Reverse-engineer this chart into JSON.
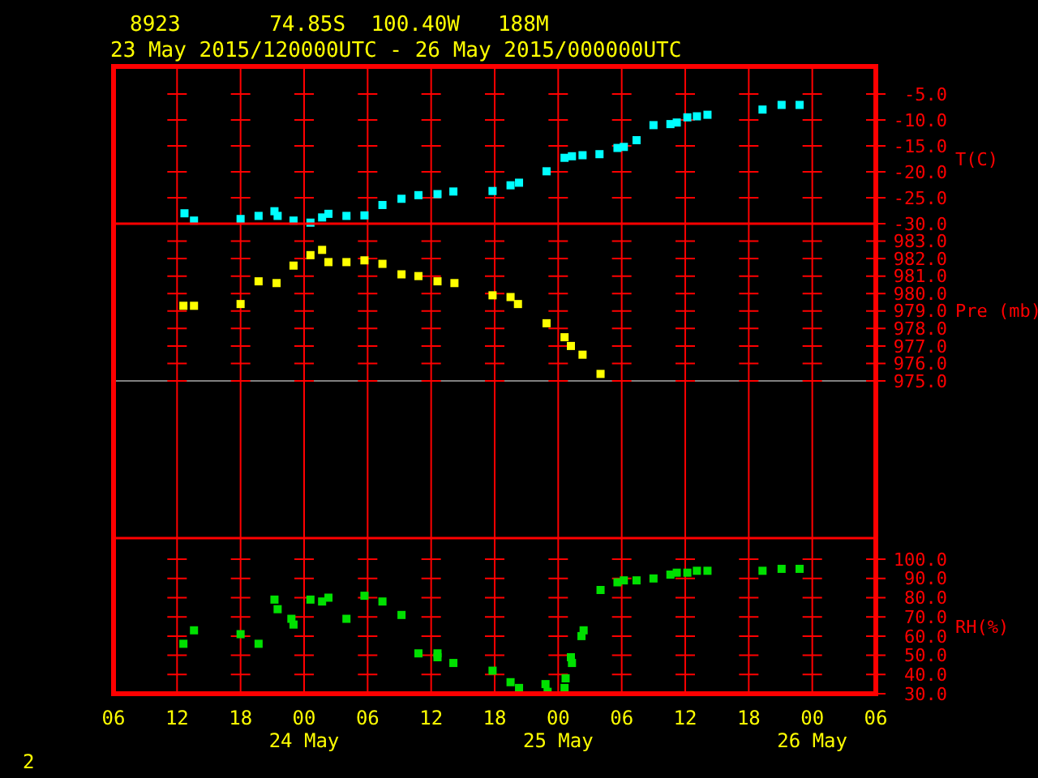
{
  "chart_data": [
    {
      "type": "scatter",
      "title": "8923       74.85S  100.40W   188M",
      "subtitle": "23 May 2015/120000UTC - 26 May 2015/000000UTC",
      "ylabel": "T(C)",
      "marker": "square",
      "grid": true,
      "tick_labels": "y",
      "xlim": [
        "2015-05-23T06:00",
        "2015-05-26T06:00"
      ],
      "xticks": [
        {
          "value": "2015-05-23T12:00",
          "label": null
        },
        {
          "value": "2015-05-23T18:00",
          "label": null
        },
        {
          "value": "2015-05-24T00:00",
          "label": null
        },
        {
          "value": "2015-05-24T06:00",
          "label": null
        },
        {
          "value": "2015-05-24T12:00",
          "label": null
        },
        {
          "value": "2015-05-24T18:00",
          "label": null
        },
        {
          "value": "2015-05-25T00:00",
          "label": null
        },
        {
          "value": "2015-05-25T06:00",
          "label": null
        },
        {
          "value": "2015-05-25T12:00",
          "label": null
        },
        {
          "value": "2015-05-25T18:00",
          "label": null
        },
        {
          "value": "2015-05-26T00:00",
          "label": null
        }
      ],
      "ylim": [
        -30,
        0
      ],
      "yticks": [
        {
          "value": -5,
          "label": "-5.0"
        },
        {
          "value": -10,
          "label": "-10.0"
        },
        {
          "value": -15,
          "label": "-15.0"
        },
        {
          "value": -20,
          "label": "-20.0"
        },
        {
          "value": -25,
          "label": "-25.0"
        },
        {
          "value": -30,
          "label": "-30.0"
        }
      ],
      "series": [
        {
          "color": "#00ffff",
          "x": [
            "2015-05-23T12:42",
            "2015-05-23T13:36",
            "2015-05-23T18:00",
            "2015-05-23T19:42",
            "2015-05-23T21:12",
            "2015-05-23T21:30",
            "2015-05-23T23:00",
            "2015-05-24T00:36",
            "2015-05-24T01:42",
            "2015-05-24T02:18",
            "2015-05-24T04:00",
            "2015-05-24T05:42",
            "2015-05-24T07:24",
            "2015-05-24T09:12",
            "2015-05-24T10:48",
            "2015-05-24T12:36",
            "2015-05-24T14:06",
            "2015-05-24T17:48",
            "2015-05-24T19:30",
            "2015-05-24T20:18",
            "2015-05-24T22:54",
            "2015-05-25T00:36",
            "2015-05-25T01:18",
            "2015-05-25T02:18",
            "2015-05-25T03:54",
            "2015-05-25T05:36",
            "2015-05-25T06:12",
            "2015-05-25T07:24",
            "2015-05-25T09:00",
            "2015-05-25T10:36",
            "2015-05-25T11:12",
            "2015-05-25T12:12",
            "2015-05-25T13:06",
            "2015-05-25T14:06",
            "2015-05-25T19:18",
            "2015-05-25T21:06",
            "2015-05-25T22:48"
          ],
          "values": [
            -28.0,
            -29.4,
            -29.1,
            -28.5,
            -27.6,
            -28.5,
            -29.4,
            -29.8,
            -28.8,
            -28.1,
            -28.5,
            -28.4,
            -26.4,
            -25.2,
            -24.5,
            -24.3,
            -23.8,
            -23.7,
            -22.6,
            -22.1,
            -19.9,
            -17.3,
            -17.0,
            -16.8,
            -16.6,
            -15.4,
            -15.2,
            -13.9,
            -11.0,
            -10.8,
            -10.5,
            -9.5,
            -9.3,
            -9.0,
            -8.0,
            -7.1,
            -7.1
          ]
        }
      ]
    },
    {
      "type": "scatter",
      "ylabel": "Pre (mb)",
      "marker": "square",
      "grid": true,
      "tick_labels": "y",
      "xlim": [
        "2015-05-23T06:00",
        "2015-05-26T06:00"
      ],
      "xticks": [
        {
          "value": "2015-05-23T12:00",
          "label": null
        },
        {
          "value": "2015-05-23T18:00",
          "label": null
        },
        {
          "value": "2015-05-24T00:00",
          "label": null
        },
        {
          "value": "2015-05-24T06:00",
          "label": null
        },
        {
          "value": "2015-05-24T12:00",
          "label": null
        },
        {
          "value": "2015-05-24T18:00",
          "label": null
        },
        {
          "value": "2015-05-25T00:00",
          "label": null
        },
        {
          "value": "2015-05-25T06:00",
          "label": null
        },
        {
          "value": "2015-05-25T12:00",
          "label": null
        },
        {
          "value": "2015-05-25T18:00",
          "label": null
        },
        {
          "value": "2015-05-26T00:00",
          "label": null
        }
      ],
      "ylim": [
        966,
        984
      ],
      "yticks": [
        {
          "value": 983,
          "label": "983.0"
        },
        {
          "value": 982,
          "label": "982.0"
        },
        {
          "value": 981,
          "label": "981.0"
        },
        {
          "value": 980,
          "label": "980.0"
        },
        {
          "value": 979,
          "label": "979.0"
        },
        {
          "value": 978,
          "label": "978.0"
        },
        {
          "value": 977,
          "label": "977.0"
        },
        {
          "value": 976,
          "label": "976.0"
        },
        {
          "value": 975,
          "label": "975.0"
        }
      ],
      "ref_lines": [
        {
          "axis": "y",
          "value": 975,
          "color": "#808080"
        }
      ],
      "series": [
        {
          "color": "#ffff00",
          "x": [
            "2015-05-23T12:36",
            "2015-05-23T13:36",
            "2015-05-23T18:00",
            "2015-05-23T19:42",
            "2015-05-23T21:24",
            "2015-05-23T23:00",
            "2015-05-24T00:36",
            "2015-05-24T01:42",
            "2015-05-24T02:18",
            "2015-05-24T04:00",
            "2015-05-24T05:42",
            "2015-05-24T07:24",
            "2015-05-24T09:12",
            "2015-05-24T10:48",
            "2015-05-24T12:36",
            "2015-05-24T14:12",
            "2015-05-24T17:48",
            "2015-05-24T19:30",
            "2015-05-24T20:12",
            "2015-05-24T22:54",
            "2015-05-25T00:36",
            "2015-05-25T01:12",
            "2015-05-25T02:18",
            "2015-05-25T04:00"
          ],
          "values": [
            979.3,
            979.3,
            979.4,
            980.7,
            980.6,
            981.6,
            982.2,
            982.5,
            981.8,
            981.8,
            981.9,
            981.7,
            981.1,
            981.0,
            980.7,
            980.6,
            979.9,
            979.8,
            979.4,
            978.3,
            977.5,
            977.0,
            976.5,
            975.4
          ]
        }
      ]
    },
    {
      "type": "scatter",
      "ylabel": "RH(%)",
      "marker": "square",
      "grid": true,
      "annotations": [
        "2"
      ],
      "xlim": [
        "2015-05-23T06:00",
        "2015-05-26T06:00"
      ],
      "xticks": [
        {
          "value": "2015-05-23T06:00",
          "label": "06"
        },
        {
          "value": "2015-05-23T12:00",
          "label": "12"
        },
        {
          "value": "2015-05-23T18:00",
          "label": "18"
        },
        {
          "value": "2015-05-24T00:00",
          "label": "00\n24 May"
        },
        {
          "value": "2015-05-24T06:00",
          "label": "06"
        },
        {
          "value": "2015-05-24T12:00",
          "label": "12"
        },
        {
          "value": "2015-05-24T18:00",
          "label": "18"
        },
        {
          "value": "2015-05-25T00:00",
          "label": "00\n25 May"
        },
        {
          "value": "2015-05-25T06:00",
          "label": "06"
        },
        {
          "value": "2015-05-25T12:00",
          "label": "12"
        },
        {
          "value": "2015-05-25T18:00",
          "label": "18"
        },
        {
          "value": "2015-05-26T00:00",
          "label": "00\n26 May"
        },
        {
          "value": "2015-05-26T06:00",
          "label": "06"
        }
      ],
      "ylim": [
        30,
        111
      ],
      "yticks": [
        {
          "value": 100,
          "label": "100.0"
        },
        {
          "value": 90,
          "label": "90.0"
        },
        {
          "value": 80,
          "label": "80.0"
        },
        {
          "value": 70,
          "label": "70.0"
        },
        {
          "value": 60,
          "label": "60.0"
        },
        {
          "value": 50,
          "label": "50.0"
        },
        {
          "value": 40,
          "label": "40.0"
        },
        {
          "value": 30,
          "label": "30.0"
        }
      ],
      "series": [
        {
          "color": "#00e000",
          "x": [
            "2015-05-23T12:36",
            "2015-05-23T13:36",
            "2015-05-23T18:00",
            "2015-05-23T19:42",
            "2015-05-23T21:12",
            "2015-05-23T21:30",
            "2015-05-23T22:48",
            "2015-05-23T23:00",
            "2015-05-24T00:36",
            "2015-05-24T01:42",
            "2015-05-24T02:18",
            "2015-05-24T04:00",
            "2015-05-24T05:42",
            "2015-05-24T07:24",
            "2015-05-24T09:12",
            "2015-05-24T10:48",
            "2015-05-24T12:36",
            "2015-05-24T12:36",
            "2015-05-24T14:06",
            "2015-05-24T17:48",
            "2015-05-24T19:30",
            "2015-05-24T20:18",
            "2015-05-24T22:48",
            "2015-05-24T23:00",
            "2015-05-25T00:36",
            "2015-05-25T00:42",
            "2015-05-25T01:12",
            "2015-05-25T01:18",
            "2015-05-25T02:12",
            "2015-05-25T02:24",
            "2015-05-25T04:00",
            "2015-05-25T05:36",
            "2015-05-25T06:12",
            "2015-05-25T07:24",
            "2015-05-25T09:00",
            "2015-05-25T10:36",
            "2015-05-25T11:12",
            "2015-05-25T12:12",
            "2015-05-25T13:06",
            "2015-05-25T14:06",
            "2015-05-25T19:18",
            "2015-05-25T21:06",
            "2015-05-25T22:48"
          ],
          "values": [
            56,
            63,
            61,
            56,
            79,
            74,
            69,
            66,
            79,
            78,
            80,
            69,
            81,
            78,
            71,
            51,
            51,
            49,
            46,
            42,
            36,
            33,
            35,
            31,
            33,
            38,
            49,
            46,
            60,
            63,
            84,
            88,
            89,
            89,
            90,
            92,
            93,
            93,
            94,
            94,
            94,
            95,
            95
          ]
        }
      ]
    }
  ]
}
